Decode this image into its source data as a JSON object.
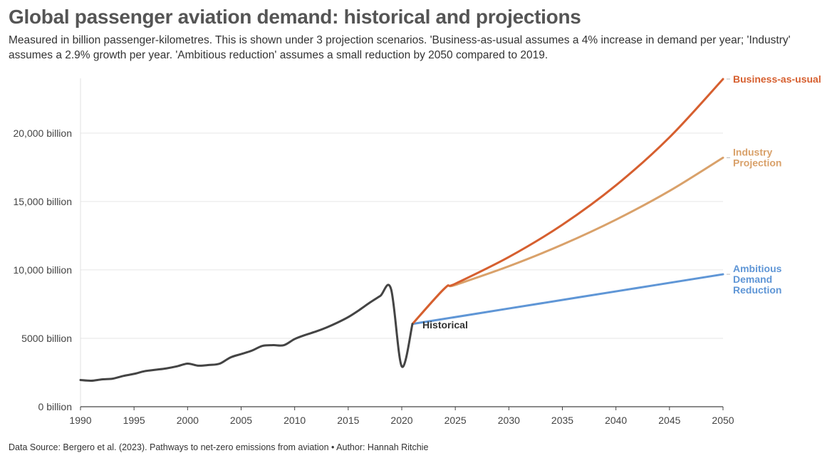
{
  "title": "Global passenger aviation demand: historical and projections",
  "subtitle": "Measured in billion passenger-kilometres. This is shown under 3 projection scenarios. 'Business-as-usual assumes a 4% increase in demand per year; 'Industry' assumes a 2.9% growth per year. 'Ambitious reduction' assumes a small reduction by 2050 compared to 2019.",
  "source": "Data Source: Bergero et al. (2023). Pathways to net-zero emissions from aviation • Author: Hannah Ritchie",
  "chart_data": {
    "type": "line",
    "xlim": [
      1990,
      2050
    ],
    "ylim": [
      0,
      24000
    ],
    "x_ticks": [
      1990,
      1995,
      2000,
      2005,
      2010,
      2015,
      2020,
      2025,
      2030,
      2035,
      2040,
      2045,
      2050
    ],
    "y_ticks": [
      {
        "value": 0,
        "label": "0 billion"
      },
      {
        "value": 5000,
        "label": "5000 billion"
      },
      {
        "value": 10000,
        "label": "10,000 billion"
      },
      {
        "value": 15000,
        "label": "15,000 billion"
      },
      {
        "value": 20000,
        "label": "20,000 billion"
      }
    ],
    "grid": "horizontal",
    "series": [
      {
        "name": "Historical",
        "color": "#444444",
        "points": [
          [
            1990,
            1950
          ],
          [
            1991,
            1900
          ],
          [
            1992,
            2000
          ],
          [
            1993,
            2050
          ],
          [
            1994,
            2250
          ],
          [
            1995,
            2400
          ],
          [
            1996,
            2600
          ],
          [
            1997,
            2700
          ],
          [
            1998,
            2800
          ],
          [
            1999,
            2950
          ],
          [
            2000,
            3150
          ],
          [
            2001,
            3000
          ],
          [
            2002,
            3050
          ],
          [
            2003,
            3150
          ],
          [
            2004,
            3600
          ],
          [
            2005,
            3850
          ],
          [
            2006,
            4100
          ],
          [
            2007,
            4450
          ],
          [
            2008,
            4500
          ],
          [
            2009,
            4500
          ],
          [
            2010,
            4950
          ],
          [
            2011,
            5250
          ],
          [
            2012,
            5500
          ],
          [
            2013,
            5800
          ],
          [
            2014,
            6150
          ],
          [
            2015,
            6550
          ],
          [
            2016,
            7050
          ],
          [
            2017,
            7600
          ],
          [
            2018,
            8100
          ],
          [
            2019,
            8600
          ],
          [
            2020,
            2950
          ],
          [
            2021,
            6050
          ]
        ]
      },
      {
        "name": "Business-as-usual",
        "color": "#d65f2f",
        "points": [
          [
            2021,
            6050
          ],
          [
            2024,
            8650
          ],
          [
            2025,
            8990
          ],
          [
            2030,
            10940
          ],
          [
            2035,
            13300
          ],
          [
            2040,
            16180
          ],
          [
            2045,
            19690
          ],
          [
            2050,
            23950
          ]
        ]
      },
      {
        "name": "Industry Projection",
        "color": "#d9a16a",
        "points": [
          [
            2021,
            6050
          ],
          [
            2024,
            8650
          ],
          [
            2025,
            8900
          ],
          [
            2030,
            10270
          ],
          [
            2035,
            11850
          ],
          [
            2040,
            13670
          ],
          [
            2045,
            15770
          ],
          [
            2050,
            18200
          ]
        ]
      },
      {
        "name": "Ambitious Demand Reduction",
        "color": "#5f96d6",
        "points": [
          [
            2021,
            6050
          ],
          [
            2030,
            7180
          ],
          [
            2040,
            8430
          ],
          [
            2050,
            9680
          ]
        ]
      }
    ]
  }
}
